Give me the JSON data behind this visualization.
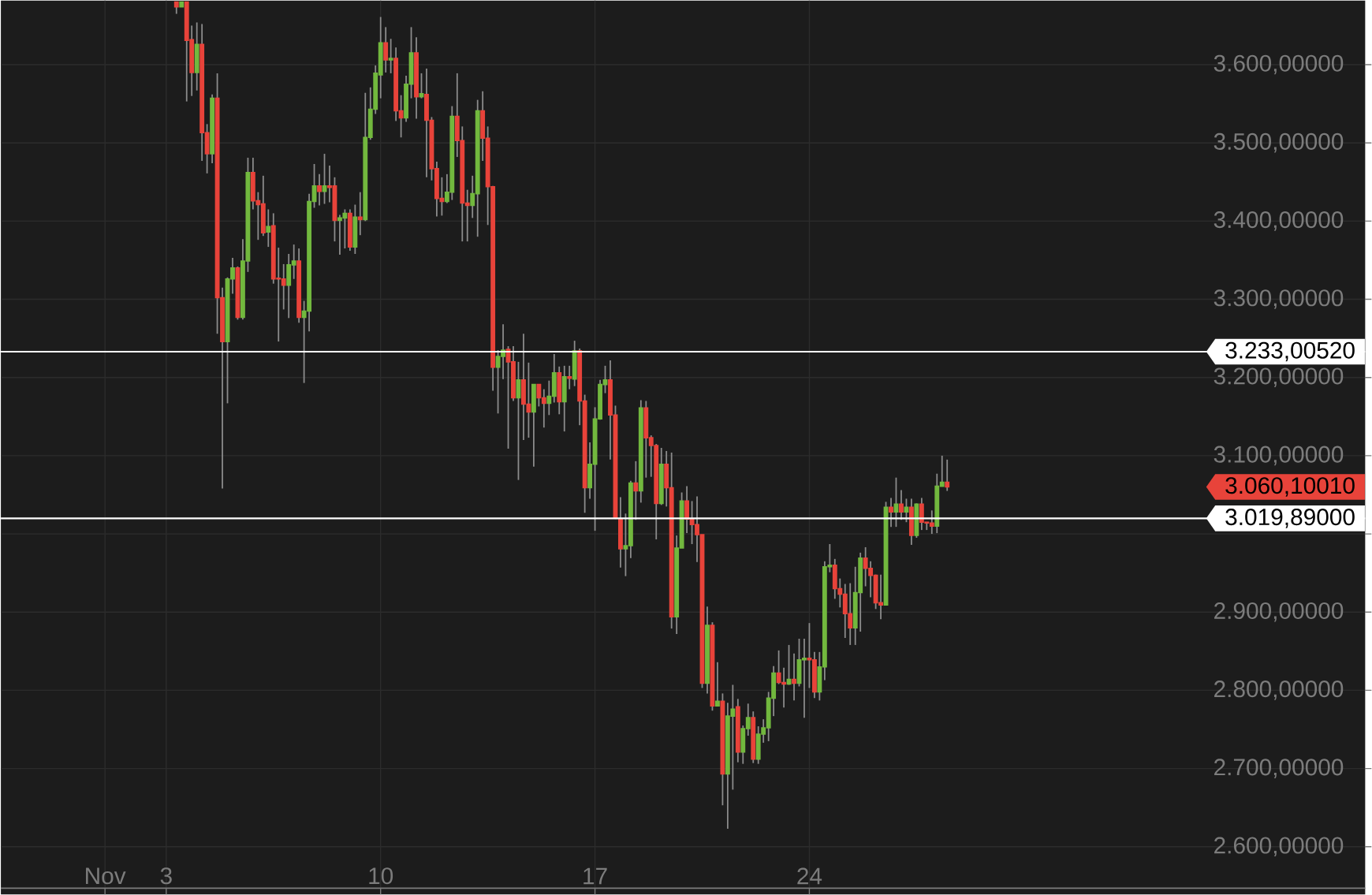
{
  "chart_data": {
    "type": "candlestick",
    "x": [
      3.333,
      3.5,
      3.667,
      3.833,
      4,
      4.167,
      4.333,
      4.5,
      4.667,
      4.833,
      5,
      5.167,
      5.333,
      5.5,
      5.667,
      5.833,
      6,
      6.167,
      6.333,
      6.5,
      6.667,
      6.833,
      7,
      7.167,
      7.333,
      7.5,
      7.667,
      7.833,
      8,
      8.167,
      8.333,
      8.5,
      8.667,
      8.833,
      9,
      9.167,
      9.333,
      9.5,
      9.667,
      9.833,
      10,
      10.167,
      10.333,
      10.5,
      10.667,
      10.833,
      11,
      11.167,
      11.333,
      11.5,
      11.667,
      11.833,
      12,
      12.167,
      12.333,
      12.5,
      12.667,
      12.833,
      13,
      13.167,
      13.333,
      13.5,
      13.667,
      13.833,
      14,
      14.167,
      14.333,
      14.5,
      14.667,
      14.833,
      15,
      15.167,
      15.333,
      15.5,
      15.667,
      15.833,
      16,
      16.167,
      16.333,
      16.5,
      16.667,
      16.833,
      17,
      17.167,
      17.333,
      17.5,
      17.667,
      17.833,
      18,
      18.167,
      18.333,
      18.5,
      18.667,
      18.833,
      19,
      19.167,
      19.333,
      19.5,
      19.667,
      19.833,
      20,
      20.167,
      20.333,
      20.5,
      20.667,
      20.833,
      21,
      21.167,
      21.333,
      21.5,
      21.667,
      21.833,
      22,
      22.167,
      22.333,
      22.5,
      22.667,
      22.833,
      23,
      23.167,
      23.333,
      23.5,
      23.667,
      23.833,
      24,
      24.167,
      24.333,
      24.5,
      24.667,
      24.833,
      25,
      25.167,
      25.333,
      25.5,
      25.667,
      25.833,
      26,
      26.167,
      26.333,
      26.5,
      26.667,
      26.833,
      27,
      27.167,
      27.333,
      27.5,
      27.667,
      27.833,
      28,
      28.167,
      28.333,
      28.5
    ],
    "ohlc": [
      [
        3680,
        3680,
        3665,
        3674
      ],
      [
        3674,
        3680,
        3674,
        3680
      ],
      [
        3680,
        3680,
        3553,
        3631
      ],
      [
        3632,
        3650,
        3560,
        3590
      ],
      [
        3590,
        3654,
        3567,
        3626
      ],
      [
        3626,
        3652,
        3477,
        3513
      ],
      [
        3513,
        3524,
        3461,
        3486
      ],
      [
        3486,
        3562,
        3474,
        3557
      ],
      [
        3557,
        3589,
        3256,
        3302
      ],
      [
        3302,
        3315,
        3058,
        3246
      ],
      [
        3246,
        3328,
        3167,
        3326
      ],
      [
        3326,
        3353,
        3307,
        3340
      ],
      [
        3340,
        3342,
        3274,
        3277
      ],
      [
        3277,
        3377,
        3274,
        3349
      ],
      [
        3349,
        3481,
        3335,
        3462
      ],
      [
        3462,
        3481,
        3415,
        3426
      ],
      [
        3426,
        3437,
        3376,
        3421
      ],
      [
        3422,
        3458,
        3381,
        3385
      ],
      [
        3386,
        3415,
        3367,
        3393
      ],
      [
        3394,
        3410,
        3320,
        3326
      ],
      [
        3327,
        3366,
        3246,
        3326
      ],
      [
        3326,
        3345,
        3287,
        3318
      ],
      [
        3318,
        3358,
        3276,
        3344
      ],
      [
        3344,
        3370,
        3326,
        3349
      ],
      [
        3349,
        3365,
        3270,
        3277
      ],
      [
        3277,
        3298,
        3193,
        3285
      ],
      [
        3285,
        3435,
        3259,
        3425
      ],
      [
        3425,
        3473,
        3417,
        3445
      ],
      [
        3445,
        3460,
        3420,
        3438
      ],
      [
        3438,
        3486,
        3422,
        3445
      ],
      [
        3445,
        3471,
        3424,
        3443
      ],
      [
        3445,
        3456,
        3374,
        3401
      ],
      [
        3401,
        3408,
        3357,
        3404
      ],
      [
        3404,
        3415,
        3365,
        3410
      ],
      [
        3410,
        3415,
        3362,
        3367
      ],
      [
        3367,
        3421,
        3358,
        3405
      ],
      [
        3405,
        3437,
        3382,
        3402
      ],
      [
        3402,
        3564,
        3400,
        3507
      ],
      [
        3507,
        3571,
        3504,
        3543
      ],
      [
        3543,
        3599,
        3537,
        3589
      ],
      [
        3587,
        3661,
        3557,
        3628
      ],
      [
        3628,
        3648,
        3590,
        3606
      ],
      [
        3606,
        3633,
        3589,
        3608
      ],
      [
        3608,
        3622,
        3528,
        3541
      ],
      [
        3541,
        3561,
        3507,
        3532
      ],
      [
        3532,
        3586,
        3527,
        3575
      ],
      [
        3575,
        3648,
        3557,
        3615
      ],
      [
        3615,
        3635,
        3531,
        3559
      ],
      [
        3559,
        3589,
        3557,
        3563
      ],
      [
        3562,
        3595,
        3456,
        3529
      ],
      [
        3529,
        3533,
        3452,
        3467
      ],
      [
        3467,
        3476,
        3406,
        3429
      ],
      [
        3429,
        3456,
        3407,
        3425
      ],
      [
        3425,
        3460,
        3423,
        3437
      ],
      [
        3437,
        3547,
        3427,
        3534
      ],
      [
        3534,
        3589,
        3482,
        3503
      ],
      [
        3503,
        3521,
        3374,
        3423
      ],
      [
        3423,
        3440,
        3374,
        3420
      ],
      [
        3420,
        3458,
        3404,
        3435
      ],
      [
        3435,
        3555,
        3380,
        3541
      ],
      [
        3541,
        3566,
        3477,
        3506
      ],
      [
        3506,
        3521,
        3395,
        3444
      ],
      [
        3444,
        3445,
        3183,
        3213
      ],
      [
        3213,
        3235,
        3154,
        3227
      ],
      [
        3227,
        3268,
        3198,
        3235
      ],
      [
        3236,
        3240,
        3109,
        3220
      ],
      [
        3220,
        3240,
        3170,
        3174
      ],
      [
        3174,
        3220,
        3069,
        3197
      ],
      [
        3197,
        3256,
        3120,
        3166
      ],
      [
        3166,
        3219,
        3123,
        3156
      ],
      [
        3156,
        3191,
        3086,
        3191
      ],
      [
        3191,
        3191,
        3163,
        3174
      ],
      [
        3174,
        3185,
        3136,
        3167
      ],
      [
        3167,
        3196,
        3152,
        3176
      ],
      [
        3176,
        3230,
        3168,
        3206
      ],
      [
        3206,
        3214,
        3153,
        3169
      ],
      [
        3169,
        3215,
        3131,
        3201
      ],
      [
        3201,
        3215,
        3185,
        3199
      ],
      [
        3198,
        3247,
        3189,
        3234
      ],
      [
        3234,
        3237,
        3139,
        3170
      ],
      [
        3170,
        3178,
        3027,
        3059
      ],
      [
        3059,
        3117,
        3045,
        3089
      ],
      [
        3089,
        3162,
        3004,
        3147
      ],
      [
        3147,
        3197,
        3146,
        3191
      ],
      [
        3191,
        3215,
        3180,
        3197
      ],
      [
        3197,
        3222,
        3095,
        3152
      ],
      [
        3152,
        3164,
        3019,
        3021
      ],
      [
        3019,
        3047,
        2957,
        2981
      ],
      [
        2981,
        3026,
        2946,
        2985
      ],
      [
        2985,
        3068,
        2969,
        3065
      ],
      [
        3065,
        3093,
        3018,
        3055
      ],
      [
        3055,
        3171,
        3040,
        3161
      ],
      [
        3161,
        3170,
        3072,
        3123
      ],
      [
        3123,
        3126,
        3073,
        3113
      ],
      [
        3113,
        3115,
        2993,
        3039
      ],
      [
        3039,
        3110,
        3037,
        3089
      ],
      [
        3089,
        3106,
        3035,
        3059
      ],
      [
        3059,
        3104,
        2879,
        2894
      ],
      [
        2894,
        2998,
        2872,
        2982
      ],
      [
        2982,
        3053,
        2982,
        3042
      ],
      [
        3042,
        3061,
        3001,
        3019
      ],
      [
        3019,
        3042,
        2987,
        3012
      ],
      [
        3012,
        3048,
        2964,
        2999
      ],
      [
        2999,
        2999,
        2803,
        2809
      ],
      [
        2809,
        2907,
        2796,
        2883
      ],
      [
        2883,
        2887,
        2774,
        2780
      ],
      [
        2780,
        2836,
        2780,
        2786
      ],
      [
        2786,
        2796,
        2653,
        2693
      ],
      [
        2693,
        2784,
        2623,
        2767
      ],
      [
        2767,
        2807,
        2673,
        2776
      ],
      [
        2779,
        2789,
        2708,
        2721
      ],
      [
        2721,
        2755,
        2706,
        2751
      ],
      [
        2751,
        2783,
        2742,
        2765
      ],
      [
        2765,
        2773,
        2707,
        2712
      ],
      [
        2712,
        2754,
        2706,
        2744
      ],
      [
        2744,
        2763,
        2733,
        2752
      ],
      [
        2752,
        2798,
        2735,
        2790
      ],
      [
        2790,
        2831,
        2767,
        2822
      ],
      [
        2822,
        2851,
        2808,
        2810
      ],
      [
        2810,
        2829,
        2778,
        2808
      ],
      [
        2808,
        2858,
        2807,
        2814
      ],
      [
        2814,
        2847,
        2787,
        2809
      ],
      [
        2809,
        2866,
        2805,
        2839
      ],
      [
        2839,
        2866,
        2765,
        2841
      ],
      [
        2841,
        2886,
        2803,
        2839
      ],
      [
        2839,
        2849,
        2790,
        2798
      ],
      [
        2798,
        2849,
        2787,
        2830
      ],
      [
        2830,
        2965,
        2813,
        2958
      ],
      [
        2958,
        2987,
        2951,
        2960
      ],
      [
        2960,
        2968,
        2917,
        2930
      ],
      [
        2930,
        2943,
        2906,
        2923
      ],
      [
        2923,
        2936,
        2867,
        2898
      ],
      [
        2898,
        2937,
        2858,
        2880
      ],
      [
        2880,
        2958,
        2858,
        2925
      ],
      [
        2925,
        2976,
        2875,
        2969
      ],
      [
        2969,
        2983,
        2933,
        2956
      ],
      [
        2956,
        2965,
        2919,
        2947
      ],
      [
        2947,
        2948,
        2904,
        2912
      ],
      [
        2912,
        2948,
        2891,
        2909
      ],
      [
        2909,
        3041,
        2909,
        3034
      ],
      [
        3034,
        3046,
        3009,
        3028
      ],
      [
        3028,
        3072,
        3009,
        3038
      ],
      [
        3038,
        3056,
        3018,
        3028
      ],
      [
        3028,
        3045,
        3015,
        3034
      ],
      [
        3034,
        3045,
        2986,
        2998
      ],
      [
        2998,
        3039,
        2995,
        3038
      ],
      [
        3038,
        3046,
        3005,
        3015
      ],
      [
        3015,
        3015,
        3005,
        3014
      ],
      [
        3014,
        3030,
        3000,
        3010
      ],
      [
        3010,
        3077,
        3001,
        3061
      ],
      [
        3061,
        3100,
        3061,
        3066
      ],
      [
        3066,
        3095,
        3055,
        3060.1001
      ]
    ],
    "colors": [
      "#e8433a",
      "#72b83e",
      "#e8433a",
      "#e8433a",
      "#72b83e",
      "#e8433a",
      "#e8433a",
      "#72b83e",
      "#e8433a",
      "#e8433a",
      "#72b83e",
      "#72b83e",
      "#e8433a",
      "#72b83e",
      "#72b83e",
      "#e8433a",
      "#e8433a",
      "#e8433a",
      "#72b83e",
      "#e8433a",
      "#e8433a",
      "#e8433a",
      "#72b83e",
      "#72b83e",
      "#e8433a",
      "#72b83e",
      "#72b83e",
      "#72b83e",
      "#e8433a",
      "#72b83e",
      "#e8433a",
      "#e8433a",
      "#72b83e",
      "#72b83e",
      "#e8433a",
      "#72b83e",
      "#e8433a",
      "#72b83e",
      "#72b83e",
      "#72b83e",
      "#72b83e",
      "#e8433a",
      "#72b83e",
      "#e8433a",
      "#e8433a",
      "#72b83e",
      "#72b83e",
      "#e8433a",
      "#72b83e",
      "#e8433a",
      "#e8433a",
      "#e8433a",
      "#e8433a",
      "#72b83e",
      "#72b83e",
      "#e8433a",
      "#e8433a",
      "#e8433a",
      "#72b83e",
      "#72b83e",
      "#e8433a",
      "#e8433a",
      "#e8433a",
      "#72b83e",
      "#72b83e",
      "#e8433a",
      "#e8433a",
      "#72b83e",
      "#e8433a",
      "#e8433a",
      "#72b83e",
      "#e8433a",
      "#e8433a",
      "#72b83e",
      "#72b83e",
      "#e8433a",
      "#72b83e",
      "#e8433a",
      "#72b83e",
      "#e8433a",
      "#e8433a",
      "#72b83e",
      "#72b83e",
      "#72b83e",
      "#72b83e",
      "#e8433a",
      "#e8433a",
      "#e8433a",
      "#72b83e",
      "#72b83e",
      "#e8433a",
      "#72b83e",
      "#e8433a",
      "#e8433a",
      "#e8433a",
      "#72b83e",
      "#e8433a",
      "#e8433a",
      "#72b83e",
      "#72b83e",
      "#e8433a",
      "#e8433a",
      "#e8433a",
      "#e8433a",
      "#72b83e",
      "#e8433a",
      "#72b83e",
      "#e8433a",
      "#72b83e",
      "#72b83e",
      "#e8433a",
      "#72b83e",
      "#72b83e",
      "#e8433a",
      "#72b83e",
      "#72b83e",
      "#72b83e",
      "#72b83e",
      "#e8433a",
      "#e8433a",
      "#72b83e",
      "#e8433a",
      "#72b83e",
      "#72b83e",
      "#e8433a",
      "#e8433a",
      "#72b83e",
      "#72b83e",
      "#72b83e",
      "#e8433a",
      "#e8433a",
      "#e8433a",
      "#e8433a",
      "#72b83e",
      "#72b83e",
      "#e8433a",
      "#e8433a",
      "#e8433a",
      "#e8433a",
      "#72b83e",
      "#e8433a",
      "#72b83e",
      "#e8433a",
      "#72b83e",
      "#e8433a",
      "#72b83e",
      "#e8433a",
      "#e8433a",
      "#e8433a",
      "#72b83e",
      "#72b83e",
      "#e8433a"
    ],
    "xlim": [
      -2.4,
      42.15
    ],
    "ylim": [
      2547,
      3682
    ],
    "xticks": [
      {
        "value": 1,
        "label": "Nov"
      },
      3,
      10,
      17,
      24
    ],
    "yticks": [
      {
        "value": 2600,
        "label": "2.600,00000"
      },
      {
        "value": 2700,
        "label": "2.700,00000"
      },
      {
        "value": 2800,
        "label": "2.800,00000"
      },
      {
        "value": 2900,
        "label": "2.900,00000"
      },
      {
        "value": 3000,
        "label": null
      },
      {
        "value": 3100,
        "label": "3.100,00000"
      },
      {
        "value": 3200,
        "label": "3.200,00000"
      },
      {
        "value": 3300,
        "label": "3.300,00000"
      },
      {
        "value": 3400,
        "label": "3.400,00000"
      },
      {
        "value": 3500,
        "label": "3.500,00000"
      },
      {
        "value": 3600,
        "label": "3.600,00000"
      }
    ],
    "grid": true,
    "ref_lines": [
      {
        "axis": "y",
        "value": 3233.0052,
        "label": "3.233,00520",
        "color": "#ffffff"
      },
      {
        "axis": "y",
        "value": 3019.89,
        "label": "3.019,89000",
        "color": "#ffffff"
      }
    ],
    "annotations": [
      "3.060,10010"
    ]
  }
}
